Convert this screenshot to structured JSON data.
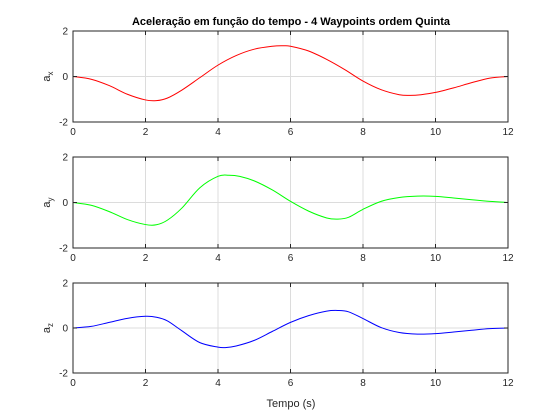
{
  "figure": {
    "title": "Aceleração em função do tempo - 4 Waypoints ordem Quinta",
    "xlabel": "Tempo (s)"
  },
  "chart_data": [
    {
      "type": "line",
      "title": "Aceleração em função do tempo - 4 Waypoints ordem Quinta",
      "ylabel_main": "a",
      "ylabel_sub": "x",
      "xlabel": "",
      "xlim": [
        0,
        12
      ],
      "ylim": [
        -2,
        2
      ],
      "xticks": [
        0,
        2,
        4,
        6,
        8,
        10,
        12
      ],
      "yticks": [
        -2,
        0,
        2
      ],
      "grid": true,
      "color": "#ff0000",
      "x": [
        0,
        0.5,
        1,
        1.5,
        2,
        2.3,
        2.6,
        3,
        3.5,
        4,
        4.5,
        5,
        5.5,
        5.8,
        6,
        6.5,
        7,
        7.5,
        8,
        8.5,
        9,
        9.3,
        9.6,
        10,
        10.5,
        11,
        11.5,
        12
      ],
      "y": [
        0,
        -0.12,
        -0.4,
        -0.78,
        -1.03,
        -1.06,
        -0.95,
        -0.6,
        -0.05,
        0.5,
        0.92,
        1.2,
        1.33,
        1.35,
        1.33,
        1.12,
        0.75,
        0.3,
        -0.2,
        -0.58,
        -0.8,
        -0.83,
        -0.8,
        -0.7,
        -0.5,
        -0.27,
        -0.07,
        0
      ]
    },
    {
      "type": "line",
      "ylabel_main": "a",
      "ylabel_sub": "y",
      "xlabel": "",
      "xlim": [
        0,
        12
      ],
      "ylim": [
        -2,
        2
      ],
      "xticks": [
        0,
        2,
        4,
        6,
        8,
        10,
        12
      ],
      "yticks": [
        -2,
        0,
        2
      ],
      "grid": true,
      "color": "#00ff00",
      "x": [
        0,
        0.5,
        1,
        1.5,
        2,
        2.3,
        2.6,
        3,
        3.5,
        4,
        4.3,
        4.6,
        5,
        5.5,
        6,
        6.5,
        7,
        7.3,
        7.6,
        8,
        8.5,
        9,
        9.5,
        10,
        10.5,
        11,
        11.5,
        12
      ],
      "y": [
        0,
        -0.12,
        -0.4,
        -0.75,
        -0.97,
        -0.98,
        -0.78,
        -0.25,
        0.65,
        1.15,
        1.2,
        1.15,
        0.95,
        0.55,
        0.05,
        -0.38,
        -0.68,
        -0.73,
        -0.65,
        -0.3,
        0.05,
        0.22,
        0.28,
        0.27,
        0.2,
        0.12,
        0.05,
        0
      ]
    },
    {
      "type": "line",
      "ylabel_main": "a",
      "ylabel_sub": "z",
      "xlabel": "Tempo (s)",
      "xlim": [
        0,
        12
      ],
      "ylim": [
        -2,
        2
      ],
      "xticks": [
        0,
        2,
        4,
        6,
        8,
        10,
        12
      ],
      "yticks": [
        -2,
        0,
        2
      ],
      "grid": true,
      "color": "#0000ff",
      "x": [
        0,
        0.5,
        1,
        1.5,
        2,
        2.3,
        2.6,
        3,
        3.5,
        4,
        4.2,
        4.5,
        5,
        5.5,
        6,
        6.5,
        7,
        7.3,
        7.6,
        8,
        8.5,
        9,
        9.5,
        10,
        10.5,
        11,
        11.5,
        12
      ],
      "y": [
        0,
        0.07,
        0.25,
        0.43,
        0.52,
        0.48,
        0.32,
        -0.12,
        -0.65,
        -0.85,
        -0.87,
        -0.8,
        -0.55,
        -0.15,
        0.25,
        0.55,
        0.75,
        0.78,
        0.72,
        0.42,
        0.02,
        -0.2,
        -0.27,
        -0.25,
        -0.18,
        -0.1,
        -0.03,
        0
      ]
    }
  ]
}
